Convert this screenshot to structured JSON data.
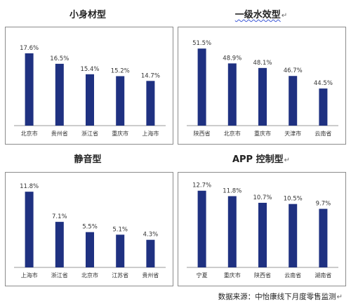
{
  "chart_data": [
    {
      "type": "bar",
      "title": "小身材型",
      "title_mark": "",
      "categories": [
        "北京市",
        "贵州省",
        "浙江省",
        "重庆市",
        "上海市"
      ],
      "values": [
        17.6,
        16.5,
        15.4,
        15.2,
        14.7
      ],
      "labels": [
        "17.6%",
        "16.5%",
        "15.4%",
        "15.2%",
        "14.7%"
      ],
      "ylim": [
        10,
        19
      ]
    },
    {
      "type": "bar",
      "title": "一级水效型",
      "title_mark": "↵",
      "categories": [
        "陕西省",
        "北京市",
        "重庆市",
        "天津市",
        "云南省"
      ],
      "values": [
        51.5,
        48.9,
        48.1,
        46.7,
        44.5
      ],
      "labels": [
        "51.5%",
        "48.9%",
        "48.1%",
        "46.7%",
        "44.5%"
      ],
      "ylim": [
        38,
        53
      ]
    },
    {
      "type": "bar",
      "title": "静音型",
      "title_mark": "",
      "categories": [
        "上海市",
        "浙江省",
        "北京市",
        "江苏省",
        "贵州省"
      ],
      "values": [
        11.8,
        7.1,
        5.5,
        5.1,
        4.3
      ],
      "labels": [
        "11.8%",
        "7.1%",
        "5.5%",
        "5.1%",
        "4.3%"
      ],
      "ylim": [
        0,
        12.8
      ]
    },
    {
      "type": "bar",
      "title": "APP 控制型",
      "title_mark": "↵",
      "categories": [
        "宁夏",
        "重庆市",
        "陕西省",
        "云南省",
        "湖南省"
      ],
      "values": [
        12.7,
        11.8,
        10.7,
        10.5,
        9.7
      ],
      "labels": [
        "12.7%",
        "11.8%",
        "10.7%",
        "10.5%",
        "9.7%"
      ],
      "ylim": [
        0,
        13.6
      ]
    }
  ],
  "footer": {
    "source": "数据来源：中怡康线下月度零售监测",
    "mark": "↵"
  },
  "colors": {
    "bar": "#1f3181",
    "border": "#8c8c8c"
  }
}
